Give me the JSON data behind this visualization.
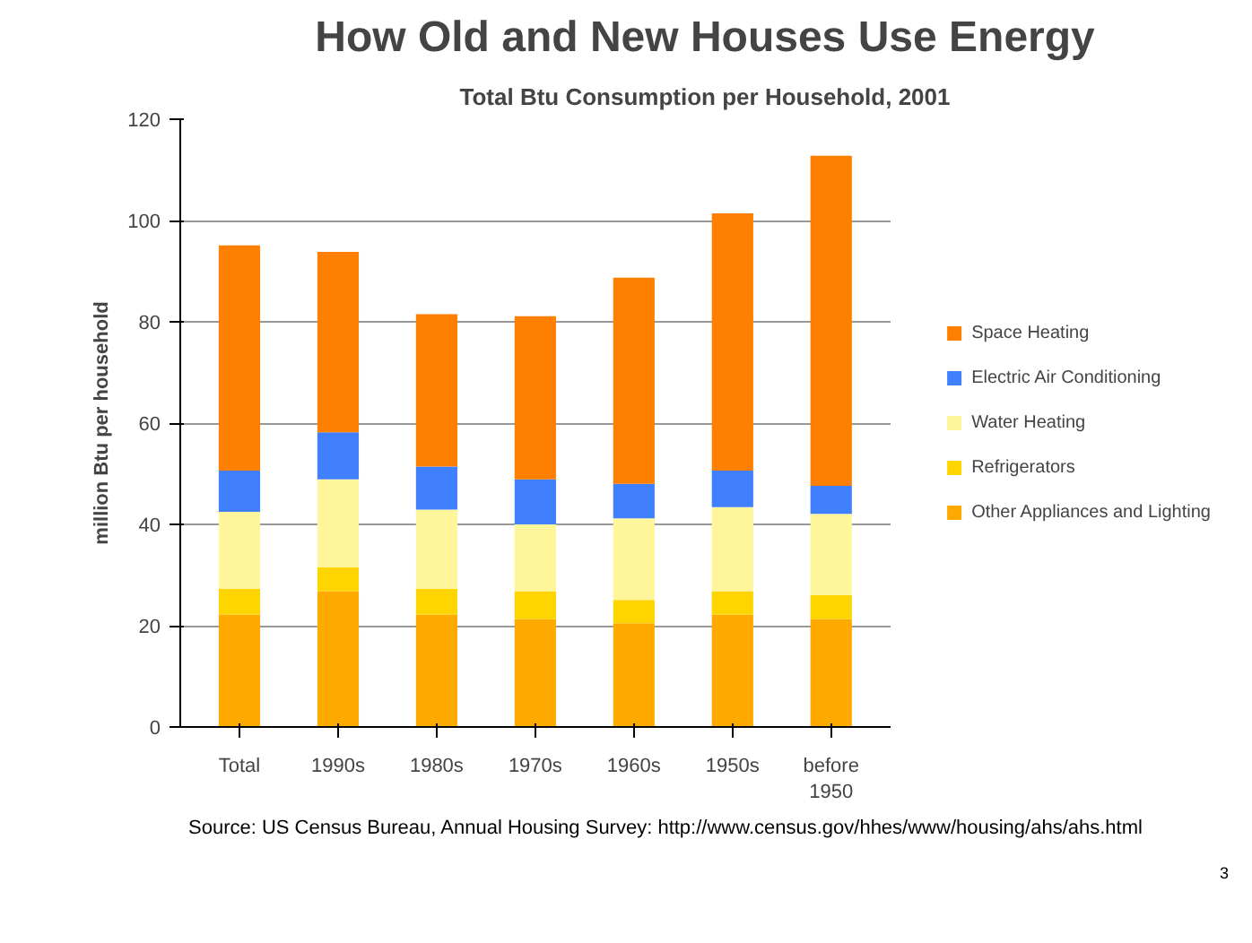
{
  "chart_data": {
    "type": "bar",
    "stacked": true,
    "title": "How Old and New Houses Use Energy",
    "subtitle": "Total Btu Consumption per Household, 2001",
    "ylabel": "million Btu per household",
    "categories": [
      "Total",
      "1990s",
      "1980s",
      "1970s",
      "1960s",
      "1950s",
      "before 1950"
    ],
    "series": [
      {
        "name": "Other Appliances and Lighting",
        "color": "#ffaa00",
        "values": [
          22.2,
          26.8,
          22.2,
          21.3,
          20.5,
          22.2,
          21.3
        ]
      },
      {
        "name": "Refrigerators",
        "color": "#ffd500",
        "values": [
          5.1,
          4.7,
          5.1,
          5.5,
          4.6,
          4.6,
          4.7
        ]
      },
      {
        "name": "Water Heating",
        "color": "#fff59a",
        "values": [
          15.2,
          17.4,
          15.6,
          13.2,
          16.1,
          16.6,
          16.1
        ]
      },
      {
        "name": "Electric Air Conditioning",
        "color": "#4080ff",
        "values": [
          8.1,
          9.3,
          8.5,
          8.9,
          6.8,
          7.2,
          5.5
        ]
      },
      {
        "name": "Space Heating",
        "color": "#ff7f00",
        "values": [
          44.5,
          35.6,
          30.1,
          32.2,
          40.7,
          50.8,
          65.2
        ]
      }
    ],
    "ylim": [
      0,
      120
    ],
    "yticks": [
      0,
      20,
      40,
      60,
      80,
      100,
      120
    ],
    "grid": "y",
    "legend": "right",
    "annotations": [
      "Source: US Census Bureau, Annual Housing Survey: http://www.census.gov/hhes/www/housing/ahs/ahs.html",
      "3"
    ]
  }
}
